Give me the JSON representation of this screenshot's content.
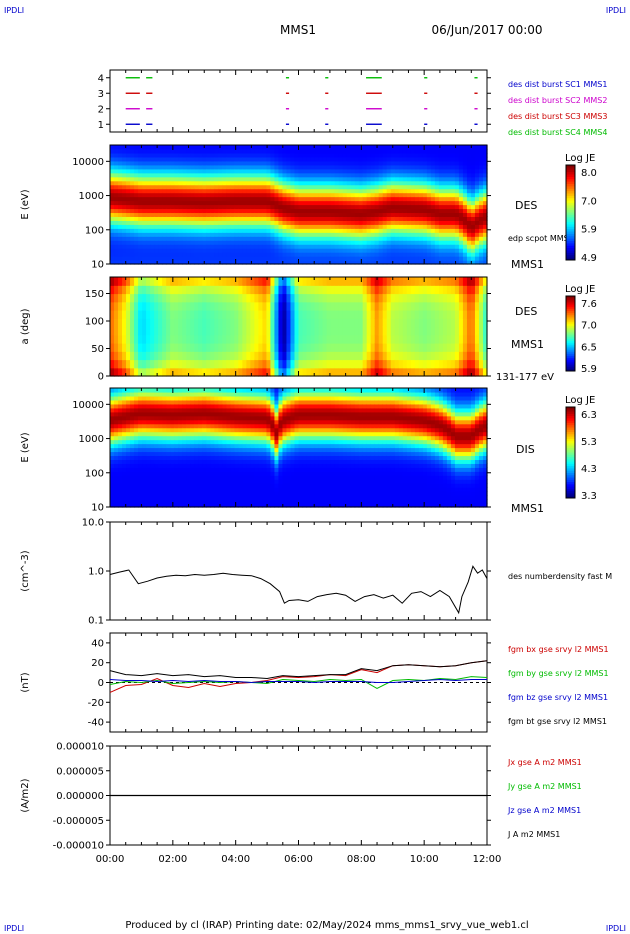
{
  "corner_labels": {
    "top_left": "IPDLI",
    "top_right": "IPDLI",
    "bottom_left": "IPDLI",
    "bottom_right": "IPDLI"
  },
  "header": {
    "spacecraft": "MMS1",
    "datetime": "06/Jun/2017 00:00"
  },
  "footer": {
    "text": "Produced by cl (IRAP)   Printing date: 02/May/2024   mms_mms1_srvy_vue_web1.cl"
  },
  "colors": {
    "red": "#cc0000",
    "green": "#00bb00",
    "blue": "#0000cc",
    "magenta": "#cc00cc",
    "black": "#000000",
    "label_blue": "#0000cc"
  },
  "time_axis": {
    "ticks": [
      "00:00",
      "02:00",
      "04:00",
      "06:00",
      "08:00",
      "10:00",
      "12:00"
    ],
    "start_hours": 0,
    "end_hours": 12
  },
  "panels": {
    "burst": {
      "ylim": [
        0.5,
        4.5
      ],
      "tick_labels": [
        "1",
        "2",
        "3",
        "4"
      ],
      "legend": [
        {
          "text": "des dist burst SC1 MMS1",
          "color": "#0000cc"
        },
        {
          "text": "des dist burst SC2 MMS2",
          "color": "#cc00cc"
        },
        {
          "text": "des dist burst SC3 MMS3",
          "color": "#cc0000"
        },
        {
          "text": "des dist burst SC4 MMS4",
          "color": "#00bb00"
        }
      ]
    },
    "des_energy": {
      "ylabel": "E (eV)",
      "tick_labels": [
        "10",
        "100",
        "1000",
        "10000"
      ],
      "right_labels": [
        "DES",
        "edp scpot MMS1",
        "MMS1"
      ],
      "colorbar": {
        "title": "Log JE",
        "tick_labels": [
          "8.0",
          "7.0",
          "5.9",
          "4.9"
        ]
      }
    },
    "des_pitch": {
      "ylabel": "a (deg)",
      "tick_labels": [
        "0",
        "50",
        "100",
        "150"
      ],
      "right_labels": [
        "DES",
        "MMS1",
        "131-177 eV"
      ],
      "colorbar": {
        "title": "Log JE",
        "tick_labels": [
          "7.6",
          "7.0",
          "6.5",
          "5.9"
        ]
      }
    },
    "dis_energy": {
      "ylabel": "E (eV)",
      "tick_labels": [
        "10",
        "100",
        "1000",
        "10000"
      ],
      "right_labels": [
        "DIS",
        "MMS1"
      ],
      "colorbar": {
        "title": "Log JE",
        "tick_labels": [
          "6.3",
          "5.3",
          "4.3",
          "3.3"
        ]
      }
    },
    "density": {
      "ylabel": "(cm^-3)",
      "tick_labels": [
        "0.1",
        "1.0",
        "10.0"
      ],
      "right_labels": [
        "des numberdensity fast M"
      ]
    },
    "bfield": {
      "ylabel": "(nT)",
      "tick_labels": [
        "-40",
        "-20",
        "0",
        "20",
        "40"
      ],
      "legend": [
        {
          "text": "fgm bx gse srvy l2 MMS1",
          "color": "#cc0000"
        },
        {
          "text": "fgm by gse srvy l2 MMS1",
          "color": "#00bb00"
        },
        {
          "text": "fgm bz gse srvy l2 MMS1",
          "color": "#0000cc"
        },
        {
          "text": "fgm bt gse srvy l2 MMS1",
          "color": "#000000"
        }
      ]
    },
    "current": {
      "ylabel": "(A/m2)",
      "tick_labels": [
        "-0.000010",
        "-0.000005",
        "0.000000",
        "0.000005",
        "0.000010"
      ],
      "legend": [
        {
          "text": "Jx gse A m2 MMS1",
          "color": "#cc0000"
        },
        {
          "text": "Jy gse A m2 MMS1",
          "color": "#00bb00"
        },
        {
          "text": "Jz gse A m2 MMS1",
          "color": "#0000cc"
        },
        {
          "text": "J A m2 MMS1",
          "color": "#000000"
        }
      ]
    }
  },
  "chart_data": [
    {
      "type": "line",
      "ylabel": "",
      "series": [
        {
          "name": "des dist burst SC1 MMS1",
          "x_hours_start": [
            0.5,
            1.15,
            5.6,
            6.85,
            8.15,
            10.0,
            11.6
          ],
          "x_hours_end": [
            0.95,
            1.35,
            5.7,
            6.95,
            8.65,
            10.1,
            11.7
          ],
          "y": 1
        },
        {
          "name": "des dist burst SC2 MMS2",
          "x_hours_start": [
            0.5,
            1.15,
            5.6,
            6.85,
            8.15,
            10.0,
            11.6
          ],
          "x_hours_end": [
            0.95,
            1.35,
            5.7,
            6.95,
            8.65,
            10.1,
            11.7
          ],
          "y": 2
        },
        {
          "name": "des dist burst SC3 MMS3",
          "x_hours_start": [
            0.5,
            1.15,
            5.6,
            6.85,
            8.15,
            10.0,
            11.6
          ],
          "x_hours_end": [
            0.95,
            1.35,
            5.7,
            6.95,
            8.65,
            10.1,
            11.7
          ],
          "y": 3
        },
        {
          "name": "des dist burst SC4 MMS4",
          "x_hours_start": [
            0.5,
            1.15,
            5.6,
            6.85,
            8.15,
            10.0,
            11.6
          ],
          "x_hours_end": [
            0.95,
            1.35,
            5.7,
            6.95,
            8.65,
            10.1,
            11.7
          ],
          "y": 4
        }
      ]
    },
    {
      "type": "heatmap",
      "ylabel": "E (eV)",
      "yscale": "log",
      "ylim": [
        10,
        30000
      ],
      "zlim": [
        4.9,
        8.1
      ],
      "x_hours": [
        0,
        1,
        2,
        3,
        4,
        5,
        5.5,
        6,
        7,
        8,
        8.5,
        9,
        10,
        10.5,
        11,
        11.5,
        12
      ],
      "peak_energy_eV": [
        900,
        700,
        700,
        650,
        700,
        700,
        450,
        350,
        350,
        300,
        350,
        450,
        400,
        300,
        300,
        120,
        250
      ]
    },
    {
      "type": "heatmap",
      "ylabel": "a (deg)",
      "ylim": [
        0,
        180
      ],
      "zlim": [
        5.9,
        7.7
      ],
      "x_hours": [
        0,
        0.5,
        1,
        2,
        3,
        4,
        5,
        5.5,
        6,
        7,
        8,
        8.5,
        9,
        10,
        11,
        11.5,
        12
      ],
      "mean_level": [
        7.3,
        7.0,
        6.5,
        6.8,
        6.7,
        6.8,
        7.1,
        5.9,
        6.7,
        6.8,
        6.8,
        7.2,
        6.9,
        6.8,
        6.9,
        7.3,
        6.6
      ]
    },
    {
      "type": "heatmap",
      "ylabel": "E (eV)",
      "yscale": "log",
      "ylim": [
        10,
        30000
      ],
      "zlim": [
        3.3,
        6.4
      ],
      "x_hours": [
        0,
        1,
        2,
        3,
        4,
        5,
        5.3,
        5.5,
        6,
        7,
        8,
        9,
        10,
        10.5,
        11,
        11.5,
        12
      ],
      "peak_energy_eV": [
        3500,
        5500,
        5000,
        5500,
        4500,
        4000,
        1500,
        3500,
        5000,
        5000,
        4500,
        4500,
        3500,
        2500,
        1200,
        1200,
        2500
      ]
    },
    {
      "type": "line",
      "ylabel": "(cm^-3)",
      "yscale": "log",
      "ylim": [
        0.1,
        10
      ],
      "series": [
        {
          "name": "des numberdensity fast M",
          "x_hours": [
            0,
            0.3,
            0.6,
            0.9,
            1.2,
            1.5,
            1.8,
            2.1,
            2.4,
            2.7,
            3.0,
            3.3,
            3.6,
            3.9,
            4.2,
            4.5,
            4.8,
            5.1,
            5.4,
            5.55,
            5.7,
            6.0,
            6.3,
            6.6,
            6.9,
            7.2,
            7.5,
            7.8,
            8.1,
            8.4,
            8.7,
            9.0,
            9.3,
            9.6,
            9.9,
            10.2,
            10.5,
            10.8,
            11.1,
            11.2,
            11.4,
            11.55,
            11.7,
            11.85,
            12.0
          ],
          "y": [
            0.85,
            0.95,
            1.05,
            0.55,
            0.62,
            0.72,
            0.78,
            0.82,
            0.8,
            0.85,
            0.82,
            0.85,
            0.9,
            0.85,
            0.82,
            0.8,
            0.7,
            0.55,
            0.38,
            0.22,
            0.25,
            0.26,
            0.24,
            0.3,
            0.33,
            0.35,
            0.32,
            0.24,
            0.3,
            0.33,
            0.28,
            0.32,
            0.22,
            0.35,
            0.38,
            0.3,
            0.4,
            0.3,
            0.14,
            0.3,
            0.6,
            1.25,
            0.9,
            1.05,
            0.7
          ]
        }
      ]
    },
    {
      "type": "line",
      "ylabel": "(nT)",
      "ylim": [
        -50,
        50
      ],
      "series": [
        {
          "name": "fgm bx gse srvy l2 MMS1",
          "x_hours": [
            0,
            0.5,
            1,
            1.5,
            2,
            2.5,
            3,
            3.5,
            4,
            4.5,
            5,
            5.5,
            6,
            6.5,
            7,
            7.5,
            8,
            8.5,
            9,
            9.5,
            10,
            10.5,
            11,
            11.5,
            12
          ],
          "y": [
            -10,
            -3,
            -2,
            4,
            -3,
            -5,
            -1,
            -4,
            -1,
            0,
            2,
            6,
            5,
            6,
            8,
            7,
            13,
            10,
            17,
            18,
            17,
            16,
            17,
            20,
            22
          ]
        },
        {
          "name": "fgm by gse srvy l2 MMS1",
          "x_hours": [
            0,
            0.5,
            1,
            1.5,
            2,
            2.5,
            3,
            3.5,
            4,
            4.5,
            5,
            5.5,
            6,
            6.5,
            7,
            7.5,
            8,
            8.5,
            9,
            9.5,
            10,
            10.5,
            11,
            11.5,
            12
          ],
          "y": [
            -2,
            1,
            0,
            2,
            -1,
            0,
            1,
            0,
            1,
            0,
            -1,
            3,
            2,
            1,
            3,
            2,
            3,
            -6,
            2,
            3,
            2,
            4,
            3,
            6,
            5
          ]
        },
        {
          "name": "fgm bz gse srvy l2 MMS1",
          "x_hours": [
            0,
            0.5,
            1,
            1.5,
            2,
            2.5,
            3,
            3.5,
            4,
            4.5,
            5,
            5.5,
            6,
            6.5,
            7,
            7.5,
            8,
            8.5,
            9,
            9.5,
            10,
            10.5,
            11,
            11.5,
            12
          ],
          "y": [
            3,
            2,
            2,
            1,
            2,
            1,
            2,
            1,
            1,
            0,
            1,
            1,
            1,
            0,
            1,
            1,
            1,
            0,
            0,
            1,
            2,
            3,
            2,
            3,
            3
          ]
        },
        {
          "name": "fgm bt gse srvy l2 MMS1",
          "x_hours": [
            0,
            0.5,
            1,
            1.5,
            2,
            2.5,
            3,
            3.5,
            4,
            4.5,
            5,
            5.5,
            6,
            6.5,
            7,
            7.5,
            8,
            8.5,
            9,
            9.5,
            10,
            10.5,
            11,
            11.5,
            12
          ],
          "y": [
            12,
            8,
            7,
            9,
            7,
            8,
            6,
            7,
            5,
            5,
            4,
            7,
            6,
            7,
            8,
            8,
            14,
            12,
            17,
            18,
            17,
            16,
            17,
            20,
            22
          ]
        }
      ]
    },
    {
      "type": "line",
      "ylabel": "(A/m2)",
      "ylim": [
        -1e-05,
        1e-05
      ],
      "series": [
        {
          "name": "J A m2 MMS1",
          "x_hours": [
            0,
            12
          ],
          "y": [
            0,
            0
          ]
        }
      ]
    }
  ]
}
